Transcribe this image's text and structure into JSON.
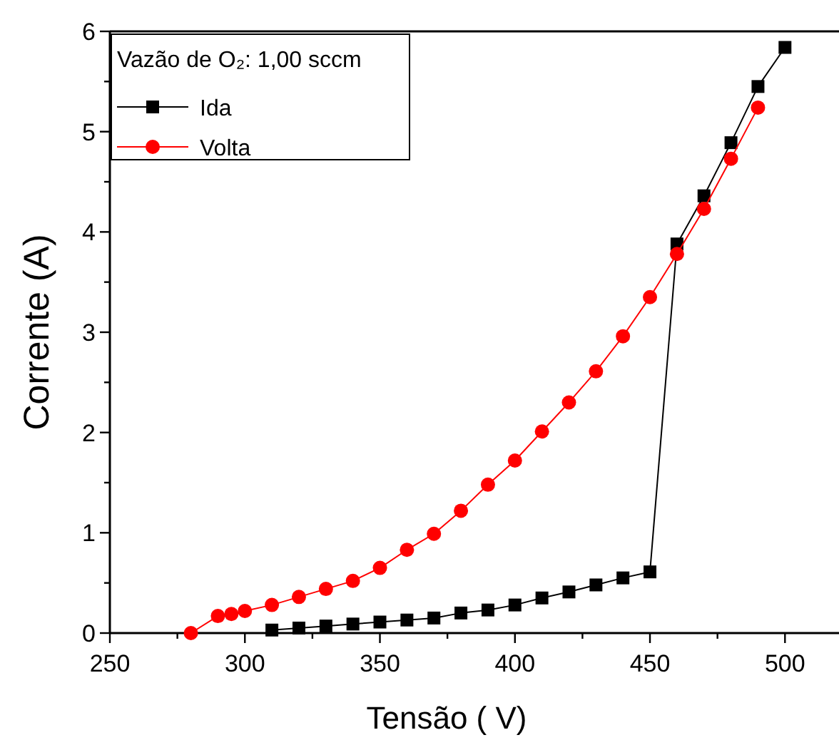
{
  "chart_data": {
    "type": "line",
    "xlabel": "Tensão  ( V)",
    "ylabel": "Corrente (A)",
    "legend_title": "Vazão de O₂: 1,00 sccm",
    "legend": "top left",
    "line_style": "solid",
    "grid": false,
    "xlim": [
      250,
      520
    ],
    "xticks": [
      250,
      {
        "value": 275,
        "label": null
      },
      300,
      {
        "value": 325,
        "label": null
      },
      350,
      {
        "value": 375,
        "label": null
      },
      400,
      {
        "value": 425,
        "label": null
      },
      450,
      {
        "value": 475,
        "label": null
      },
      500
    ],
    "ylim": [
      0,
      6
    ],
    "yticks": [
      0,
      {
        "value": 0.5,
        "label": null
      },
      1,
      {
        "value": 1.5,
        "label": null
      },
      2,
      {
        "value": 2.5,
        "label": null
      },
      3,
      {
        "value": 3.5,
        "label": null
      },
      4,
      {
        "value": 4.5,
        "label": null
      },
      5,
      {
        "value": 5.5,
        "label": null
      },
      6
    ],
    "series": [
      {
        "name": "Ida",
        "color": "#000000",
        "marker": "square",
        "x": [
          310,
          320,
          330,
          340,
          350,
          360,
          370,
          380,
          390,
          400,
          410,
          420,
          430,
          440,
          450,
          460,
          470,
          480,
          490,
          500
        ],
        "values": [
          0.03,
          0.05,
          0.07,
          0.09,
          0.11,
          0.13,
          0.15,
          0.2,
          0.23,
          0.28,
          0.35,
          0.41,
          0.48,
          0.55,
          0.61,
          3.88,
          4.36,
          4.89,
          5.45,
          5.84
        ]
      },
      {
        "name": "Volta",
        "color": "#ff0000",
        "marker": "circle",
        "x": [
          280,
          290,
          295,
          300,
          310,
          320,
          330,
          340,
          350,
          360,
          370,
          380,
          390,
          400,
          410,
          420,
          430,
          440,
          450,
          460,
          470,
          480,
          490
        ],
        "values": [
          0,
          0.17,
          0.19,
          0.22,
          0.28,
          0.36,
          0.44,
          0.52,
          0.65,
          0.83,
          0.99,
          1.22,
          1.48,
          1.72,
          2.01,
          2.3,
          2.61,
          2.96,
          3.35,
          3.78,
          4.23,
          4.73,
          5.24
        ]
      }
    ]
  }
}
